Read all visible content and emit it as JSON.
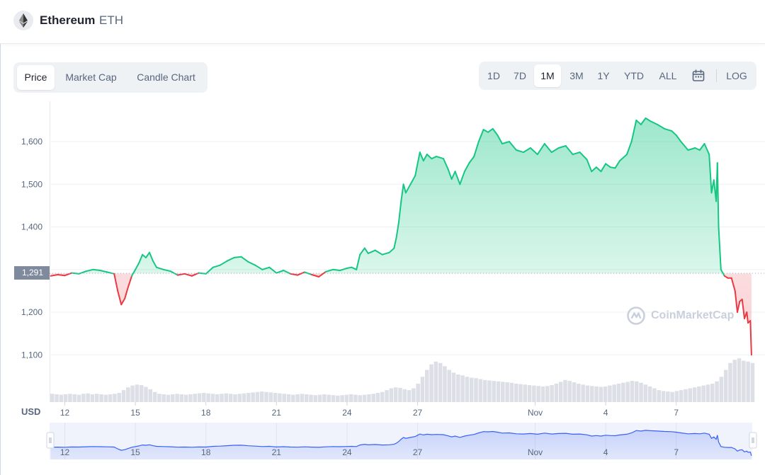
{
  "header": {
    "coin_name": "Ethereum",
    "coin_symbol": "ETH",
    "logo_icon": "ethereum-icon"
  },
  "chart_type_tabs": [
    {
      "label": "Price",
      "active": true
    },
    {
      "label": "Market Cap",
      "active": false
    },
    {
      "label": "Candle Chart",
      "active": false
    }
  ],
  "range_tabs": [
    {
      "label": "1D",
      "active": false
    },
    {
      "label": "7D",
      "active": false
    },
    {
      "label": "1M",
      "active": true
    },
    {
      "label": "3M",
      "active": false
    },
    {
      "label": "1Y",
      "active": false
    },
    {
      "label": "YTD",
      "active": false
    },
    {
      "label": "ALL",
      "active": false
    }
  ],
  "range_extras": {
    "calendar_icon": "calendar-icon",
    "log_label": "LOG"
  },
  "currency_label": "USD",
  "current_price_label": "1,291",
  "watermark": "CoinMarketCap",
  "colors": {
    "up": "#16c784",
    "down": "#ea3943",
    "nav_line": "#3861fb",
    "volume": "#dcdfe6"
  },
  "chart_data": {
    "type": "area",
    "title": "",
    "xlabel": "",
    "ylabel": "USD",
    "ylim": [
      1000,
      1700
    ],
    "yticks": [
      1100,
      1200,
      1300,
      1400,
      1500,
      1600
    ],
    "ytick_labels": [
      "1,100",
      "1,200",
      "1,400",
      "1,500",
      "1,600"
    ],
    "xticks": [
      {
        "label": "12",
        "day": 0
      },
      {
        "label": "15",
        "day": 3
      },
      {
        "label": "18",
        "day": 6
      },
      {
        "label": "21",
        "day": 9
      },
      {
        "label": "24",
        "day": 12
      },
      {
        "label": "27",
        "day": 15
      },
      {
        "label": "Nov",
        "day": 20
      },
      {
        "label": "4",
        "day": 23
      },
      {
        "label": "7",
        "day": 26
      }
    ],
    "reference_price": 1291,
    "series": [
      {
        "points": [
          [
            -0.6,
            1285
          ],
          [
            -0.3,
            1288
          ],
          [
            0.0,
            1286
          ],
          [
            0.3,
            1292
          ],
          [
            0.6,
            1290
          ],
          [
            0.9,
            1296
          ],
          [
            1.2,
            1300
          ],
          [
            1.5,
            1298
          ],
          [
            1.8,
            1294
          ],
          [
            2.1,
            1290
          ],
          [
            2.25,
            1250
          ],
          [
            2.4,
            1218
          ],
          [
            2.55,
            1232
          ],
          [
            2.7,
            1260
          ],
          [
            2.85,
            1285
          ],
          [
            3.0,
            1300
          ],
          [
            3.15,
            1315
          ],
          [
            3.3,
            1335
          ],
          [
            3.45,
            1328
          ],
          [
            3.6,
            1340
          ],
          [
            3.75,
            1320
          ],
          [
            3.9,
            1305
          ],
          [
            4.2,
            1300
          ],
          [
            4.5,
            1296
          ],
          [
            4.8,
            1287
          ],
          [
            5.1,
            1290
          ],
          [
            5.4,
            1285
          ],
          [
            5.7,
            1292
          ],
          [
            6.0,
            1290
          ],
          [
            6.3,
            1305
          ],
          [
            6.6,
            1310
          ],
          [
            6.9,
            1320
          ],
          [
            7.2,
            1328
          ],
          [
            7.5,
            1330
          ],
          [
            7.8,
            1318
          ],
          [
            8.1,
            1310
          ],
          [
            8.4,
            1300
          ],
          [
            8.7,
            1305
          ],
          [
            9.0,
            1292
          ],
          [
            9.3,
            1298
          ],
          [
            9.6,
            1290
          ],
          [
            9.9,
            1287
          ],
          [
            10.2,
            1294
          ],
          [
            10.5,
            1288
          ],
          [
            10.8,
            1283
          ],
          [
            11.1,
            1295
          ],
          [
            11.4,
            1300
          ],
          [
            11.7,
            1298
          ],
          [
            12.0,
            1303
          ],
          [
            12.2,
            1305
          ],
          [
            12.4,
            1300
          ],
          [
            12.55,
            1335
          ],
          [
            12.75,
            1350
          ],
          [
            12.9,
            1338
          ],
          [
            13.2,
            1345
          ],
          [
            13.5,
            1335
          ],
          [
            13.8,
            1340
          ],
          [
            14.0,
            1350
          ],
          [
            14.1,
            1375
          ],
          [
            14.2,
            1410
          ],
          [
            14.3,
            1460
          ],
          [
            14.4,
            1500
          ],
          [
            14.5,
            1480
          ],
          [
            14.7,
            1500
          ],
          [
            14.9,
            1520
          ],
          [
            15.0,
            1548
          ],
          [
            15.1,
            1575
          ],
          [
            15.25,
            1555
          ],
          [
            15.4,
            1570
          ],
          [
            15.6,
            1560
          ],
          [
            15.8,
            1565
          ],
          [
            16.1,
            1560
          ],
          [
            16.3,
            1535
          ],
          [
            16.45,
            1512
          ],
          [
            16.6,
            1530
          ],
          [
            16.8,
            1500
          ],
          [
            17.0,
            1530
          ],
          [
            17.2,
            1550
          ],
          [
            17.4,
            1565
          ],
          [
            17.6,
            1600
          ],
          [
            17.8,
            1628
          ],
          [
            18.0,
            1622
          ],
          [
            18.2,
            1630
          ],
          [
            18.4,
            1615
          ],
          [
            18.6,
            1595
          ],
          [
            18.9,
            1600
          ],
          [
            19.2,
            1580
          ],
          [
            19.5,
            1575
          ],
          [
            19.8,
            1585
          ],
          [
            20.1,
            1570
          ],
          [
            20.4,
            1595
          ],
          [
            20.7,
            1575
          ],
          [
            21.0,
            1585
          ],
          [
            21.3,
            1590
          ],
          [
            21.6,
            1570
          ],
          [
            21.9,
            1575
          ],
          [
            22.2,
            1558
          ],
          [
            22.4,
            1530
          ],
          [
            22.6,
            1540
          ],
          [
            22.8,
            1530
          ],
          [
            23.0,
            1548
          ],
          [
            23.2,
            1540
          ],
          [
            23.4,
            1538
          ],
          [
            23.6,
            1555
          ],
          [
            23.9,
            1570
          ],
          [
            24.1,
            1600
          ],
          [
            24.3,
            1650
          ],
          [
            24.5,
            1640
          ],
          [
            24.7,
            1655
          ],
          [
            24.9,
            1648
          ],
          [
            25.2,
            1640
          ],
          [
            25.5,
            1630
          ],
          [
            25.8,
            1625
          ],
          [
            26.0,
            1615
          ],
          [
            26.2,
            1600
          ],
          [
            26.5,
            1580
          ],
          [
            26.8,
            1585
          ],
          [
            27.0,
            1580
          ],
          [
            27.2,
            1595
          ],
          [
            27.4,
            1570
          ],
          [
            27.5,
            1480
          ],
          [
            27.6,
            1510
          ],
          [
            27.7,
            1460
          ],
          [
            27.75,
            1550
          ],
          [
            27.8,
            1400
          ],
          [
            27.9,
            1300
          ],
          [
            28.05,
            1285
          ],
          [
            28.2,
            1280
          ],
          [
            28.35,
            1280
          ],
          [
            28.5,
            1250
          ],
          [
            28.6,
            1200
          ],
          [
            28.7,
            1225
          ],
          [
            28.8,
            1230
          ],
          [
            28.9,
            1185
          ],
          [
            29.0,
            1200
          ],
          [
            29.05,
            1175
          ],
          [
            29.15,
            1180
          ],
          [
            29.2,
            1100
          ]
        ]
      }
    ],
    "volume": {
      "ymax": 100,
      "values": [
        18,
        17,
        16,
        17,
        18,
        17,
        16,
        18,
        19,
        17,
        18,
        17,
        16,
        17,
        18,
        20,
        26,
        32,
        36,
        38,
        37,
        33,
        28,
        22,
        18,
        17,
        16,
        17,
        18,
        17,
        16,
        17,
        18,
        19,
        20,
        19,
        18,
        17,
        18,
        19,
        18,
        17,
        18,
        19,
        20,
        21,
        22,
        23,
        22,
        21,
        20,
        19,
        18,
        17,
        16,
        17,
        18,
        17,
        16,
        15,
        16,
        17,
        16,
        15,
        14,
        15,
        16,
        17,
        16,
        15,
        16,
        17,
        18,
        20,
        22,
        26,
        30,
        32,
        31,
        28,
        26,
        30,
        40,
        55,
        70,
        82,
        88,
        85,
        78,
        70,
        64,
        60,
        58,
        55,
        53,
        52,
        50,
        48,
        47,
        46,
        45,
        44,
        43,
        42,
        40,
        39,
        38,
        37,
        36,
        35,
        34,
        35,
        37,
        40,
        44,
        48,
        46,
        43,
        40,
        38,
        36,
        35,
        34,
        33,
        34,
        36,
        38,
        40,
        42,
        44,
        46,
        45,
        42,
        38,
        34,
        30,
        26,
        24,
        23,
        22,
        24,
        26,
        28,
        30,
        32,
        34,
        36,
        38,
        40,
        45,
        55,
        70,
        85,
        92,
        95,
        90,
        88,
        85
      ]
    },
    "navigator": {
      "xticks": [
        "12",
        "15",
        "18",
        "21",
        "24",
        "27",
        "Nov",
        "4",
        "7"
      ]
    }
  }
}
